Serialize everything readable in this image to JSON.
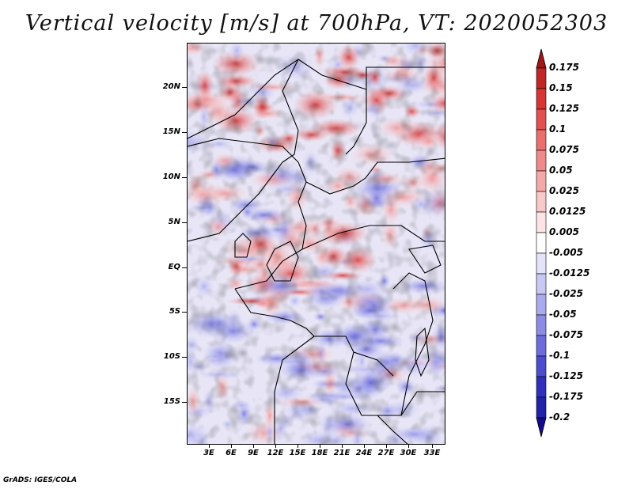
{
  "title": "Vertical velocity [m/s] at 700hPa, VT: 2020052303",
  "credit": "GrADS: IGES/COLA",
  "y_axis_labels": [
    "20N",
    "15N",
    "10N",
    "5N",
    "EQ",
    "5S",
    "10S",
    "15S"
  ],
  "x_axis_labels": [
    "3E",
    "6E",
    "9E",
    "12E",
    "15E",
    "18E",
    "21E",
    "24E",
    "27E",
    "30E",
    "33E"
  ],
  "colorbar": {
    "labels": [
      "0.175",
      "0.15",
      "0.125",
      "0.1",
      "0.075",
      "0.05",
      "0.025",
      "0.0125",
      "0.005",
      "-0.005",
      "-0.0125",
      "-0.025",
      "-0.05",
      "-0.075",
      "-0.1",
      "-0.125",
      "-0.175",
      "-0.2"
    ],
    "colors": [
      "#a01818",
      "#c02626",
      "#d83434",
      "#e25050",
      "#ea6e6e",
      "#f08a8a",
      "#f5a8a8",
      "#f9c8c8",
      "#fce4e4",
      "#ffffff",
      "#e2e2fa",
      "#c8c8f5",
      "#aaaaee",
      "#8c8ce6",
      "#6c6cdc",
      "#4c4cd0",
      "#3030bc",
      "#2222a8",
      "#140b8c"
    ]
  },
  "map_colors": {
    "strong_up": "#c83232",
    "up": "#f08a8a",
    "weak_up": "#fadcdc",
    "weak_down": "#dcdcf8",
    "down": "#8c8ce6",
    "strong_down": "#3c3cc8",
    "border": "#000000"
  }
}
